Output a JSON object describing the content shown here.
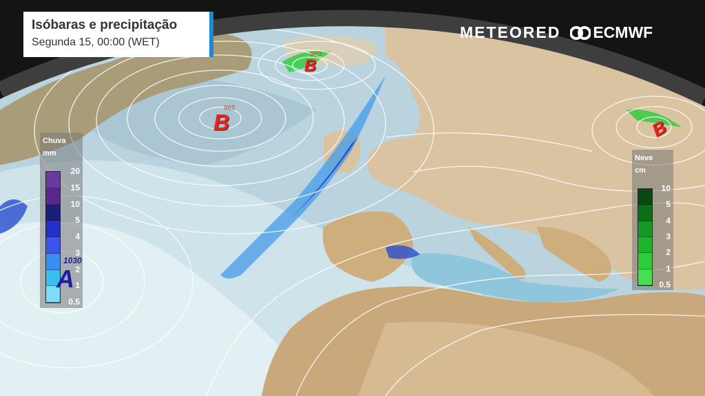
{
  "header": {
    "title": "Isóbaras e precipitação",
    "subtitle": "Segunda 15, 00:00 (WET)"
  },
  "logos": {
    "meteored": "METEORED",
    "ecmwf": "ECMWF"
  },
  "rain_legend": {
    "title": "Chuva",
    "unit": "mm",
    "ticks": [
      "20",
      "15",
      "10",
      "5",
      "4",
      "3",
      "2",
      "1",
      "0.5"
    ],
    "colors": [
      "#6a3a9e",
      "#58288a",
      "#1a1f7a",
      "#2430c8",
      "#3a55e8",
      "#3b8ef0",
      "#38bff2",
      "#7ddcfa"
    ]
  },
  "snow_legend": {
    "title": "Neve",
    "unit": "cm",
    "ticks": [
      "10",
      "5",
      "4",
      "3",
      "2",
      "1",
      "0.5"
    ],
    "colors": [
      "#0a4a12",
      "#0d6e19",
      "#149a24",
      "#1fb22f",
      "#2ccc3d",
      "#45e053"
    ]
  },
  "pressure_centers": [
    {
      "type": "low",
      "letter": "B",
      "value": "965"
    },
    {
      "type": "low",
      "letter": "B",
      "value": "963"
    },
    {
      "type": "low",
      "letter": "B",
      "value": ""
    },
    {
      "type": "high",
      "letter": "A",
      "value": "1030"
    }
  ]
}
